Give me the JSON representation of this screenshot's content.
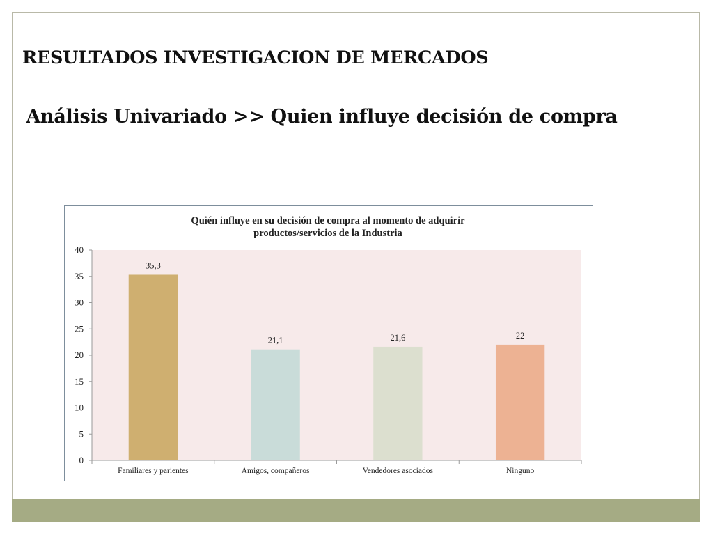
{
  "slide": {
    "heading": "RESULTADOS INVESTIGACION DE MERCADOS",
    "subheading": "Análisis Univariado >> Quien influye decisión de compra"
  },
  "colors": {
    "plot_background": "#f7eaea",
    "bottom_bar": "#a5ab84",
    "bars": [
      "#cfaf70",
      "#c9dcd9",
      "#dcdfcf",
      "#edb293"
    ]
  },
  "chart_data": {
    "type": "bar",
    "title_lines": [
      "Quién influye en su decisión de compra al momento de adquirir",
      "productos/servicios de la Industria"
    ],
    "categories": [
      "Familiares y parientes",
      "Amigos, compañeros",
      "Vendedores asociados",
      "Ninguno"
    ],
    "values": [
      35.3,
      21.1,
      21.6,
      22
    ],
    "data_labels": [
      "35,3",
      "21,1",
      "21,6",
      "22"
    ],
    "yticks": [
      "0",
      "5",
      "10",
      "15",
      "20",
      "25",
      "30",
      "35",
      "40"
    ],
    "ylim": [
      0,
      40
    ],
    "grid": false,
    "legend": "none"
  }
}
